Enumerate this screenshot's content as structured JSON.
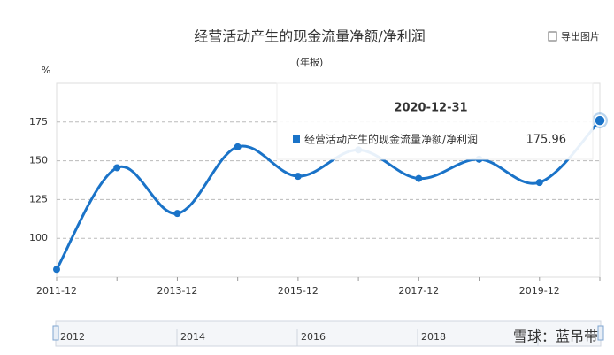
{
  "chart_data": {
    "type": "line",
    "title": "经营活动产生的现金流量净额/净利润",
    "subtitle": "(年报)",
    "y_unit": "%",
    "export_label": "导出图片",
    "x": [
      "2011-12",
      null,
      "2013-12",
      null,
      "2015-12",
      null,
      "2017-12",
      null,
      "2019-12",
      null
    ],
    "series": [
      {
        "name": "经营活动产生的现金流量净额/净利润",
        "color": "#1a73c8",
        "values": [
          80,
          145.5,
          116,
          159,
          140,
          157,
          138.6,
          151,
          136,
          175.96
        ]
      }
    ],
    "ylim": [
      75,
      200
    ],
    "yticks": [
      100,
      125,
      150,
      175
    ],
    "grid": true,
    "tooltip": {
      "date": "2020-12-31",
      "index": 9
    },
    "slider": {
      "labels": [
        "2012",
        "2014",
        "2016",
        "2018"
      ]
    },
    "watermark": "雪球：蓝吊带"
  }
}
